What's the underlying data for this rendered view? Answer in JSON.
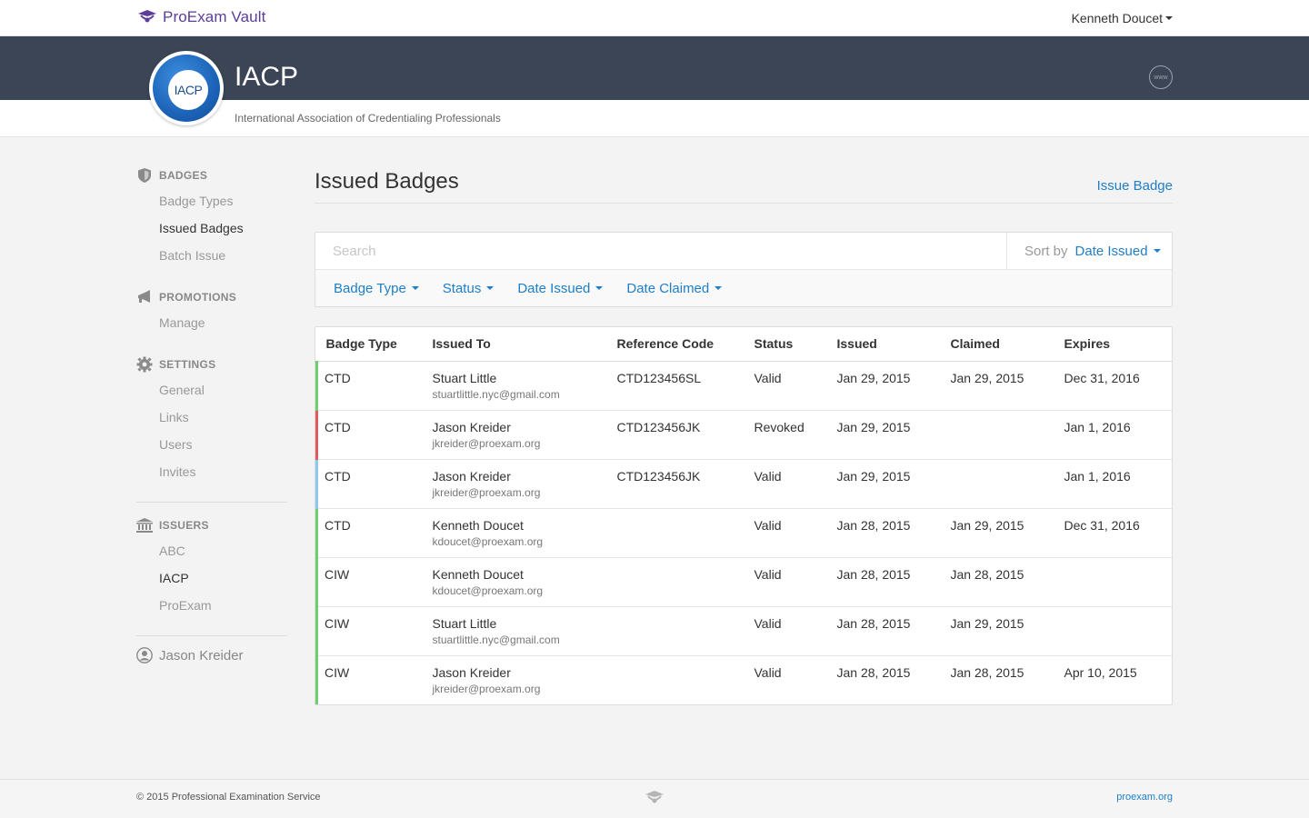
{
  "app": {
    "brand": "ProExam Vault",
    "user_name": "Kenneth Doucet"
  },
  "org": {
    "logo_text": "IACP",
    "name": "IACP",
    "full_name": "International Association of Credentialing Professionals",
    "www_label": "www"
  },
  "sidebar": {
    "sections": [
      {
        "title": "BADGES",
        "icon": "shield-icon",
        "items": [
          {
            "label": "Badge Types",
            "active": false
          },
          {
            "label": "Issued Badges",
            "active": true
          },
          {
            "label": "Batch Issue",
            "active": false
          }
        ]
      },
      {
        "title": "PROMOTIONS",
        "icon": "megaphone-icon",
        "items": [
          {
            "label": "Manage",
            "active": false
          }
        ]
      },
      {
        "title": "SETTINGS",
        "icon": "gear-icon",
        "items": [
          {
            "label": "General",
            "active": false
          },
          {
            "label": "Links",
            "active": false
          },
          {
            "label": "Users",
            "active": false
          },
          {
            "label": "Invites",
            "active": false
          }
        ]
      },
      {
        "title": "ISSUERS",
        "icon": "bank-icon",
        "items": [
          {
            "label": "ABC",
            "active": false
          },
          {
            "label": "IACP",
            "active": true
          },
          {
            "label": "ProExam",
            "active": false
          }
        ]
      }
    ],
    "user": "Jason Kreider"
  },
  "main": {
    "title": "Issued Badges",
    "issue_link": "Issue Badge",
    "search_placeholder": "Search",
    "sort_label": "Sort by",
    "sort_value": "Date Issued",
    "filters": [
      "Badge Type",
      "Status",
      "Date Issued",
      "Date Claimed"
    ]
  },
  "table": {
    "columns": [
      "Badge Type",
      "Issued To",
      "Reference Code",
      "Status",
      "Issued",
      "Claimed",
      "Expires"
    ],
    "rows": [
      {
        "badge_type": "CTD",
        "name": "Stuart Little",
        "email": "stuartlittle.nyc@gmail.com",
        "ref": "CTD123456SL",
        "status": "Valid",
        "issued": "Jan 29, 2015",
        "claimed": "Jan 29, 2015",
        "expires": "Dec 31, 2016",
        "accent": "#6fcf6f"
      },
      {
        "badge_type": "CTD",
        "name": "Jason Kreider",
        "email": "jkreider@proexam.org",
        "ref": "CTD123456JK",
        "status": "Revoked",
        "issued": "Jan 29, 2015",
        "claimed": "",
        "expires": "Jan 1, 2016",
        "accent": "#e05b5b"
      },
      {
        "badge_type": "CTD",
        "name": "Jason Kreider",
        "email": "jkreider@proexam.org",
        "ref": "CTD123456JK",
        "status": "Valid",
        "issued": "Jan 29, 2015",
        "claimed": "",
        "expires": "Jan 1, 2016",
        "accent": "#8fc7ef"
      },
      {
        "badge_type": "CTD",
        "name": "Kenneth Doucet",
        "email": "kdoucet@proexam.org",
        "ref": "",
        "status": "Valid",
        "issued": "Jan 28, 2015",
        "claimed": "Jan 29, 2015",
        "expires": "Dec 31, 2016",
        "accent": "#6fcf6f"
      },
      {
        "badge_type": "CIW",
        "name": "Kenneth Doucet",
        "email": "kdoucet@proexam.org",
        "ref": "",
        "status": "Valid",
        "issued": "Jan 28, 2015",
        "claimed": "Jan 28, 2015",
        "expires": "",
        "accent": "#6fcf6f"
      },
      {
        "badge_type": "CIW",
        "name": "Stuart Little",
        "email": "stuartlittle.nyc@gmail.com",
        "ref": "",
        "status": "Valid",
        "issued": "Jan 28, 2015",
        "claimed": "Jan 29, 2015",
        "expires": "",
        "accent": "#6fcf6f"
      },
      {
        "badge_type": "CIW",
        "name": "Jason Kreider",
        "email": "jkreider@proexam.org",
        "ref": "",
        "status": "Valid",
        "issued": "Jan 28, 2015",
        "claimed": "Jan 28, 2015",
        "expires": "Apr 10, 2015",
        "accent": "#6fcf6f"
      }
    ]
  },
  "footer": {
    "copyright": "© 2015 Professional Examination Service",
    "link": "proexam.org"
  },
  "colors": {
    "brand": "#5c3d99",
    "header_band": "#3b4555",
    "link": "#1f7ec7",
    "valid": "#6fcf6f",
    "revoked": "#e05b5b"
  }
}
